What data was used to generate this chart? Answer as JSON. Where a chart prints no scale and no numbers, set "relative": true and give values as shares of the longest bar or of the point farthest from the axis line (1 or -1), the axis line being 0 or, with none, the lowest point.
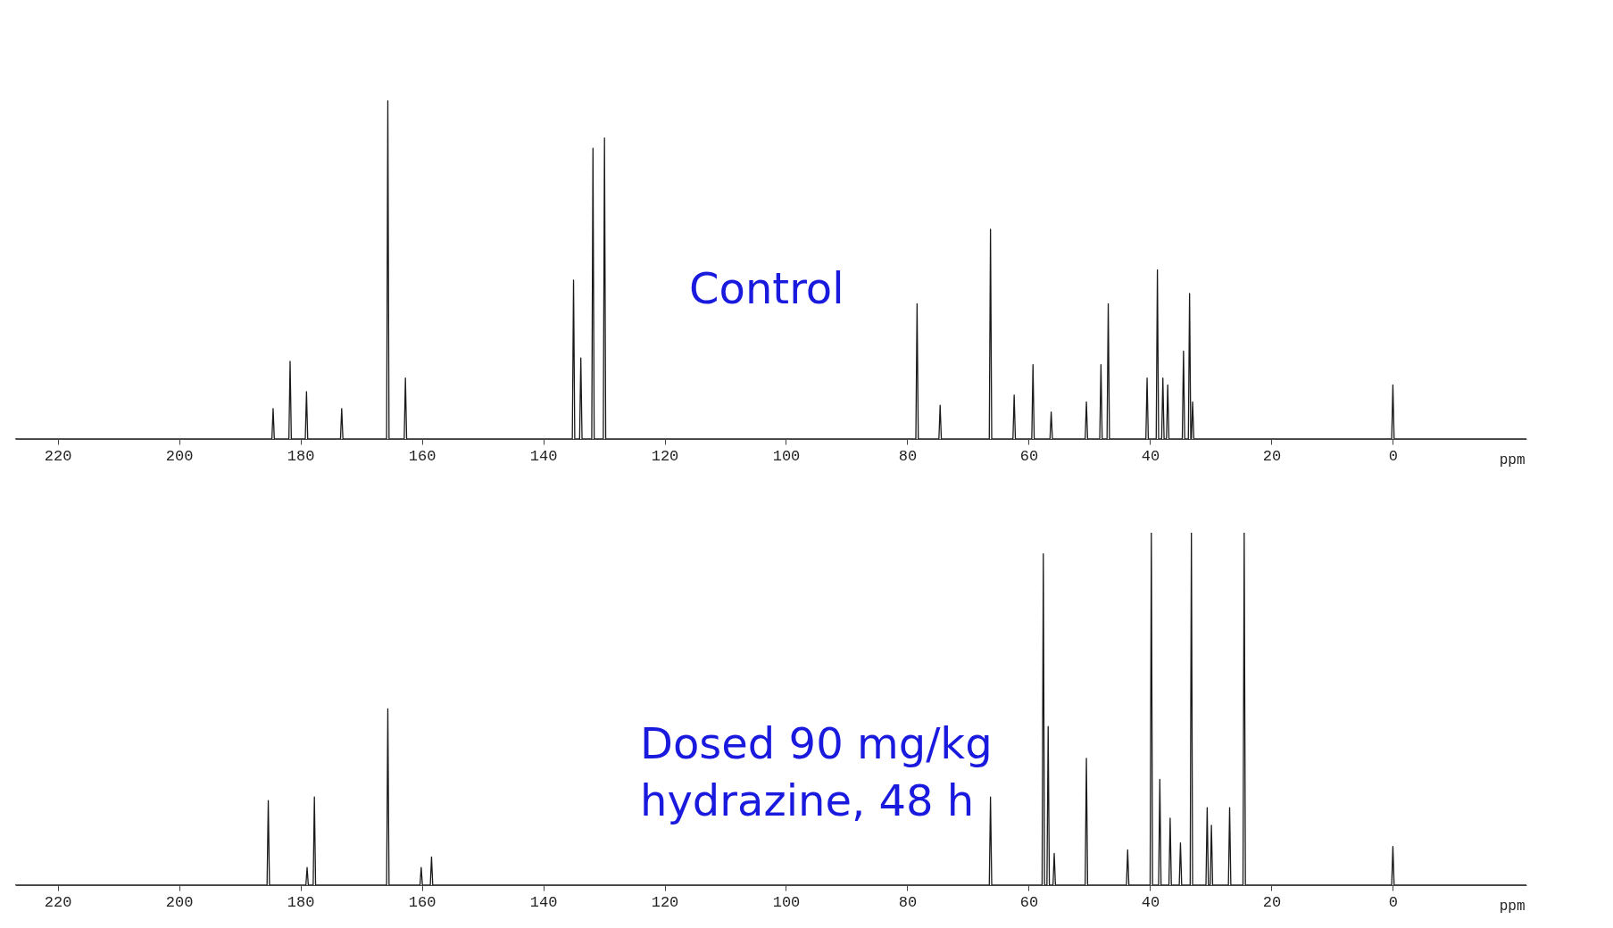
{
  "chart_data": [
    {
      "type": "line",
      "relative": true,
      "xlim": [
        227,
        -22
      ],
      "xticks": [
        220,
        200,
        180,
        160,
        140,
        120,
        100,
        80,
        60,
        40,
        20,
        0
      ],
      "xlabel": "ppm",
      "tick_labels": "x",
      "annotations": [
        "Control"
      ],
      "series": [
        {
          "color": "#1a1a1a",
          "x": [
            227,
            184.7,
            184.5,
            184.3,
            181.9,
            181.7,
            181.5,
            179.2,
            179.0,
            178.8,
            173.4,
            173.2,
            173.0,
            165.8,
            165.6,
            165.4,
            162.9,
            162.7,
            162.5,
            135.2,
            135.0,
            134.8,
            134.0,
            133.8,
            133.6,
            132.0,
            131.8,
            131.6,
            130.1,
            129.9,
            129.7,
            78.6,
            78.4,
            78.2,
            74.8,
            74.6,
            74.4,
            66.5,
            66.3,
            66.1,
            62.6,
            62.4,
            62.2,
            59.5,
            59.3,
            59.1,
            56.5,
            56.3,
            56.1,
            50.7,
            50.5,
            50.3,
            48.3,
            48.1,
            47.9,
            47.1,
            46.9,
            46.7,
            40.7,
            40.5,
            40.3,
            39.0,
            38.8,
            38.6,
            38.1,
            37.9,
            37.7,
            37.3,
            37.1,
            36.9,
            34.7,
            34.5,
            34.3,
            33.7,
            33.5,
            33.3,
            33.2,
            33.0,
            32.8,
            0.2,
            0,
            -0.2,
            -22
          ],
          "values": [
            0,
            0,
            0.09,
            0,
            0,
            0.23,
            0,
            0,
            0.14,
            0,
            0,
            0.09,
            0,
            0,
            1.0,
            0,
            0,
            0.18,
            0,
            0,
            0.47,
            0,
            0,
            0.24,
            0,
            0,
            0.86,
            0,
            0,
            0.89,
            0,
            0,
            0.4,
            0,
            0,
            0.1,
            0,
            0,
            0.62,
            0,
            0,
            0.13,
            0,
            0,
            0.22,
            0,
            0,
            0.08,
            0,
            0,
            0.11,
            0,
            0,
            0.22,
            0,
            0,
            0.4,
            0,
            0,
            0.18,
            0,
            0,
            0.5,
            0,
            0,
            0.18,
            0,
            0,
            0.16,
            0,
            0,
            0.26,
            0,
            0,
            0.43,
            0,
            0,
            0.11,
            0,
            0,
            0.16,
            0,
            0
          ]
        }
      ]
    },
    {
      "type": "line",
      "relative": true,
      "xlim": [
        227,
        -22
      ],
      "xticks": [
        220,
        200,
        180,
        160,
        140,
        120,
        100,
        80,
        60,
        40,
        20,
        0
      ],
      "xlabel": "ppm",
      "tick_labels": "x",
      "annotations": [
        "Dosed 90 mg/kg\nhydrazine, 48 h"
      ],
      "series": [
        {
          "color": "#1a1a1a",
          "x": [
            227,
            185.5,
            185.3,
            185.1,
            179.1,
            178.9,
            178.7,
            177.9,
            177.7,
            177.5,
            165.8,
            165.6,
            165.4,
            160.3,
            160.1,
            159.9,
            158.6,
            158.4,
            158.2,
            66.5,
            66.3,
            66.1,
            57.8,
            57.6,
            57.4,
            57.0,
            56.8,
            56.6,
            56.0,
            55.8,
            55.6,
            50.7,
            50.5,
            50.3,
            43.9,
            43.7,
            43.5,
            40.0,
            39.8,
            39.6,
            38.6,
            38.4,
            38.2,
            36.9,
            36.7,
            36.5,
            35.2,
            35.0,
            34.8,
            33.4,
            33.2,
            33.0,
            30.8,
            30.6,
            30.4,
            30.1,
            29.9,
            29.7,
            27.1,
            26.9,
            26.7,
            24.7,
            24.5,
            24.3,
            0.2,
            0,
            -0.2,
            -22
          ],
          "values": [
            0,
            0,
            0.24,
            0,
            0,
            0.05,
            0,
            0,
            0.25,
            0,
            0,
            0.5,
            0,
            0,
            0.05,
            0,
            0,
            0.08,
            0,
            0,
            0.25,
            0,
            0,
            0.94,
            0,
            0,
            0.45,
            0,
            0,
            0.09,
            0,
            0,
            0.36,
            0,
            0,
            0.1,
            0,
            0,
            1.0,
            0,
            0,
            0.3,
            0,
            0,
            0.19,
            0,
            0,
            0.12,
            0,
            0,
            1.0,
            0,
            0,
            0.22,
            0,
            0,
            0.17,
            0,
            0,
            0.22,
            0,
            0,
            1.0,
            0,
            0,
            0.11,
            0,
            0
          ]
        }
      ]
    }
  ]
}
